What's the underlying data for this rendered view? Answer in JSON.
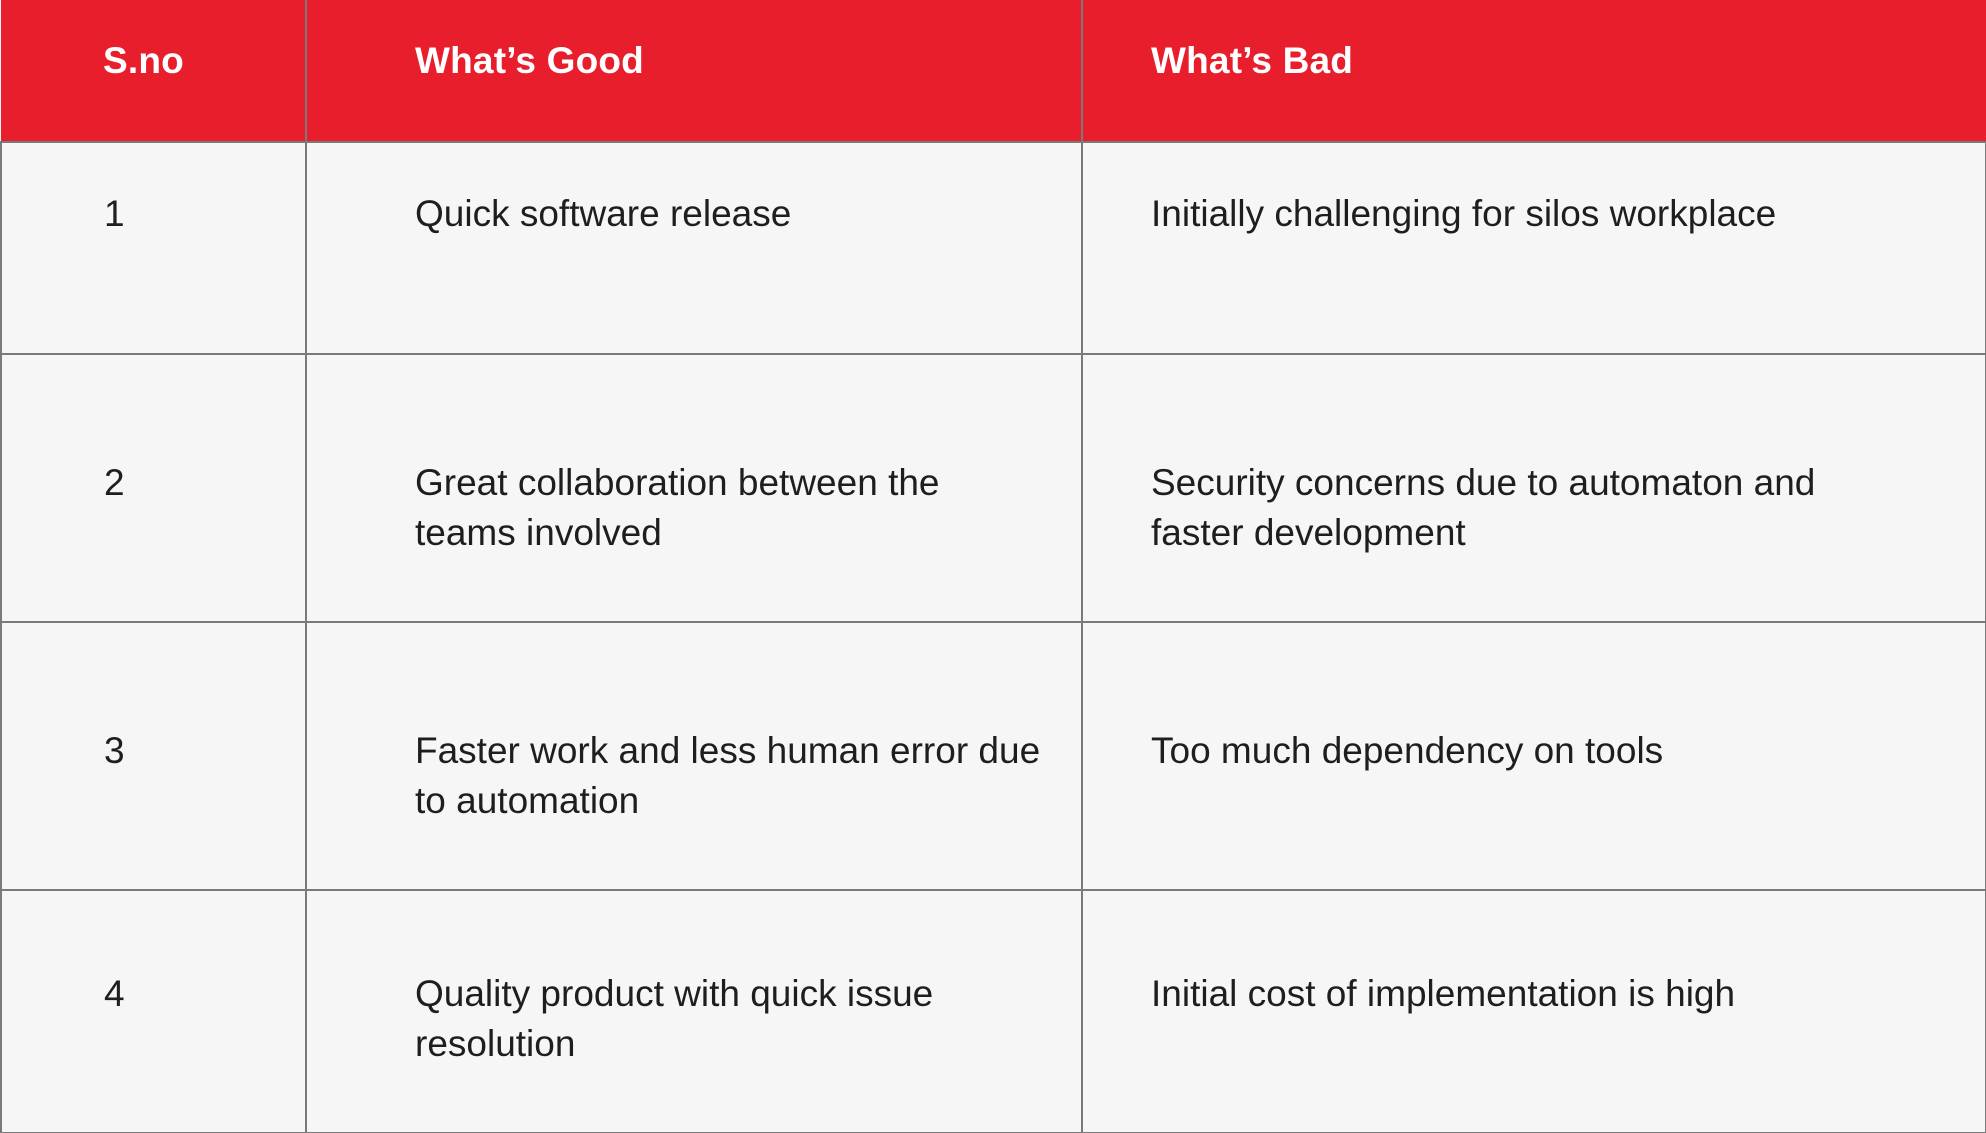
{
  "table": {
    "headers": {
      "sno": "S.no",
      "good": "What’s Good",
      "bad": "What’s Bad"
    },
    "rows": [
      {
        "sno": "1",
        "good": "Quick software release",
        "bad": "Initially challenging for silos workplace"
      },
      {
        "sno": "2",
        "good": "Great collaboration between the teams involved",
        "bad": "Security concerns due to automaton and faster development"
      },
      {
        "sno": "3",
        "good": "Faster work and less human error due to automation",
        "bad": "Too much dependency on tools"
      },
      {
        "sno": "4",
        "good": "Quality product with quick issue resolution",
        "bad": "Initial cost of implementation is high"
      }
    ]
  },
  "colors": {
    "header_background": "#e81e2c",
    "header_text": "#ffffff",
    "body_background": "#f6f6f6",
    "body_text": "#1e1e1e",
    "border": "#7a7a7a"
  }
}
